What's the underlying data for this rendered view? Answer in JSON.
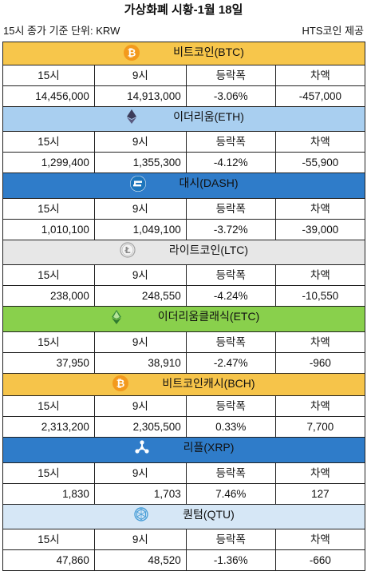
{
  "title": "가상화폐 시황-1월 18일",
  "subheader": {
    "basis": "15시 종가 기준  단위: KRW",
    "provider": "HTS코인 제공"
  },
  "columns": [
    "15시",
    "9시",
    "등락폭",
    "차액"
  ],
  "coins": [
    {
      "name": "비트코인(BTC)",
      "icon": "bitcoin-icon",
      "bg": "#f7c64b",
      "price_15": "14,456,000",
      "price_9": "14,913,000",
      "change": "-3.06%",
      "diff": "-457,000"
    },
    {
      "name": "이더리움(ETH)",
      "icon": "ethereum-icon",
      "bg": "#a9cff0",
      "price_15": "1,299,400",
      "price_9": "1,355,300",
      "change": "-4.12%",
      "diff": "-55,900"
    },
    {
      "name": "대시(DASH)",
      "icon": "dash-icon",
      "bg": "#2f7cc9",
      "price_15": "1,010,100",
      "price_9": "1,049,100",
      "change": "-3.72%",
      "diff": "-39,000"
    },
    {
      "name": "라이트코인(LTC)",
      "icon": "litecoin-icon",
      "bg": "#e7e7e7",
      "price_15": "238,000",
      "price_9": "248,550",
      "change": "-4.24%",
      "diff": "-10,550"
    },
    {
      "name": "이더리움클래식(ETC)",
      "icon": "ethereum-classic-icon",
      "bg": "#89d04c",
      "price_15": "37,950",
      "price_9": "38,910",
      "change": "-2.47%",
      "diff": "-960"
    },
    {
      "name": "비트코인캐시(BCH)",
      "icon": "bitcoin-cash-icon",
      "bg": "#f6c44a",
      "price_15": "2,313,200",
      "price_9": "2,305,500",
      "change": "0.33%",
      "diff": "7,700"
    },
    {
      "name": "리플(XRP)",
      "icon": "ripple-icon",
      "bg": "#2f7cc9",
      "price_15": "1,830",
      "price_9": "1,703",
      "change": "7.46%",
      "diff": "127"
    },
    {
      "name": "퀀텀(QTU)",
      "icon": "qtum-icon",
      "bg": "#d6e7f6",
      "price_15": "47,860",
      "price_9": "48,520",
      "change": "-1.36%",
      "diff": "-660"
    }
  ]
}
